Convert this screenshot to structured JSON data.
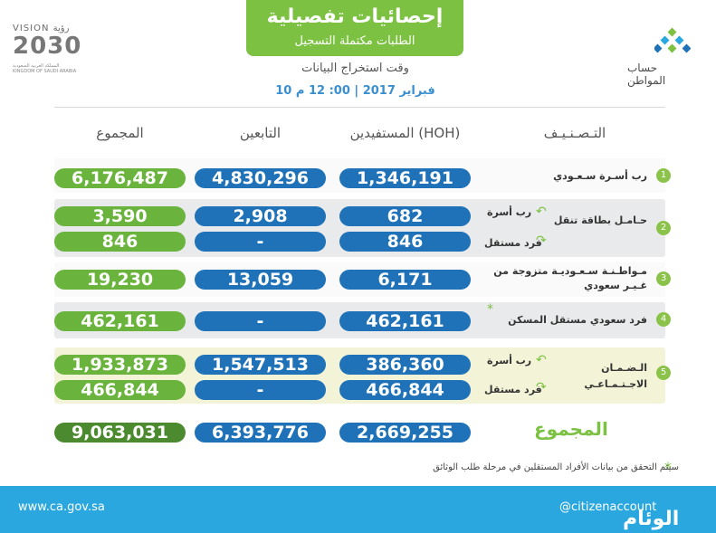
{
  "header": {
    "title": "إحصائيات تفصيلية",
    "subtitle": "الطلبات مكتملة التسجيل",
    "extract_label": "وقت استخراج البيانات",
    "extract_date": "10 فبراير 2017 | 00: 12 م",
    "vision_top": "VISION رؤية",
    "vision_year": "2030",
    "vision_small": "المملكة العربية السعودية  KINGDOM OF SAUDI ARABIA",
    "citizen_name": "حساب المواطن"
  },
  "columns": {
    "category": "التـصـنـيـف",
    "beneficiaries": "المستفيدين (HOH)",
    "dependents": "التابعين",
    "total": "المجموع"
  },
  "rows": [
    {
      "num": "1",
      "label": "رب أسـرة سـعـودي",
      "lines": [
        {
          "ben": "1,346,191",
          "dep": "4,830,296",
          "tot": "6,176,487"
        }
      ]
    },
    {
      "num": "2",
      "label": "حـامـل بطاقة تنقل",
      "subs": [
        "رب أسرة",
        "فرد مستقل"
      ],
      "lines": [
        {
          "ben": "682",
          "dep": "2,908",
          "tot": "3,590"
        },
        {
          "ben": "846",
          "dep": "-",
          "tot": "846"
        }
      ]
    },
    {
      "num": "3",
      "label": "مـواطـنـة سـعـوديـة متزوجة من غـيـر سعودي",
      "lines": [
        {
          "ben": "6,171",
          "dep": "13,059",
          "tot": "19,230"
        }
      ]
    },
    {
      "num": "4",
      "label": "فرد سعودي مستقل المسكن",
      "lines": [
        {
          "ben": "462,161",
          "dep": "-",
          "tot": "462,161"
        }
      ]
    },
    {
      "num": "5",
      "label": "الـضـمـان الاجـتـمـاعـي",
      "subs": [
        "رب أسرة",
        "فرد مستقل"
      ],
      "lines": [
        {
          "ben": "386,360",
          "dep": "1,547,513",
          "tot": "1,933,873"
        },
        {
          "ben": "466,844",
          "dep": "-",
          "tot": "466,844"
        }
      ]
    }
  ],
  "totals": {
    "label": "المجموع",
    "ben": "2,669,255",
    "dep": "6,393,776",
    "tot": "9,063,031"
  },
  "note": "سيتم التحقق من بيانات الأفراد المستقلين في مرحلة طلب الوثائق",
  "footer": {
    "website": "www.ca.gov.sa",
    "twitter": "@citizenaccount",
    "watermark": "الوئام"
  },
  "colors": {
    "green": "#7cc142",
    "blue": "#1f72b8",
    "footer": "#2aa7df"
  }
}
